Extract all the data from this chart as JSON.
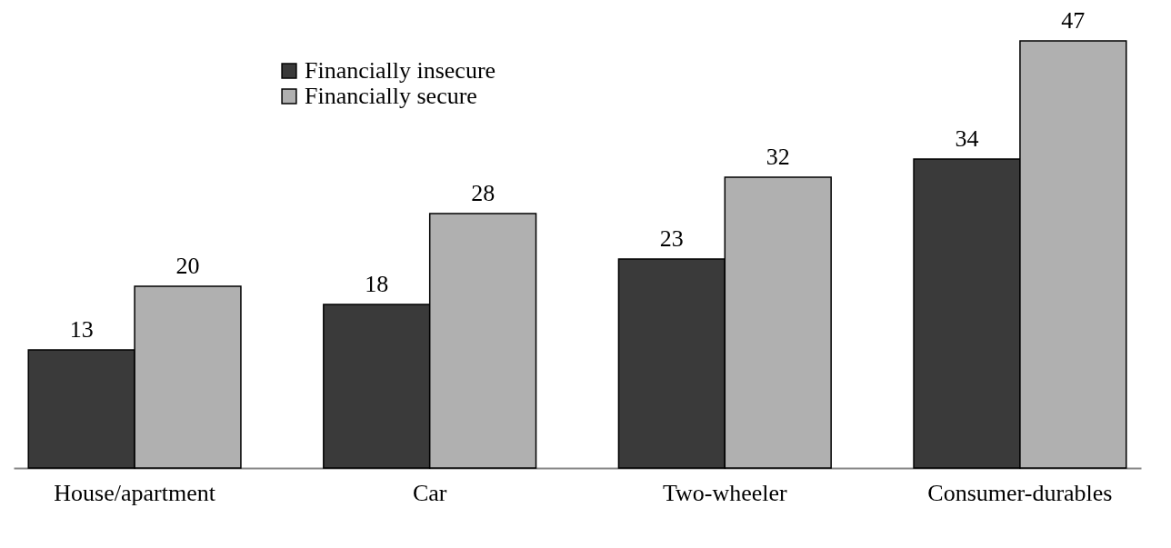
{
  "chart_data": {
    "type": "bar",
    "categories": [
      "House/apartment",
      "Car",
      "Two-wheeler",
      "Consumer-durables"
    ],
    "series": [
      {
        "name": "Financially insecure",
        "color": "#3a3a3a",
        "values": [
          13,
          18,
          23,
          34
        ]
      },
      {
        "name": "Financially secure",
        "color": "#b0b0b0",
        "values": [
          20,
          28,
          32,
          47
        ]
      }
    ],
    "data_labels": true,
    "legend": "top left",
    "grid": false
  }
}
